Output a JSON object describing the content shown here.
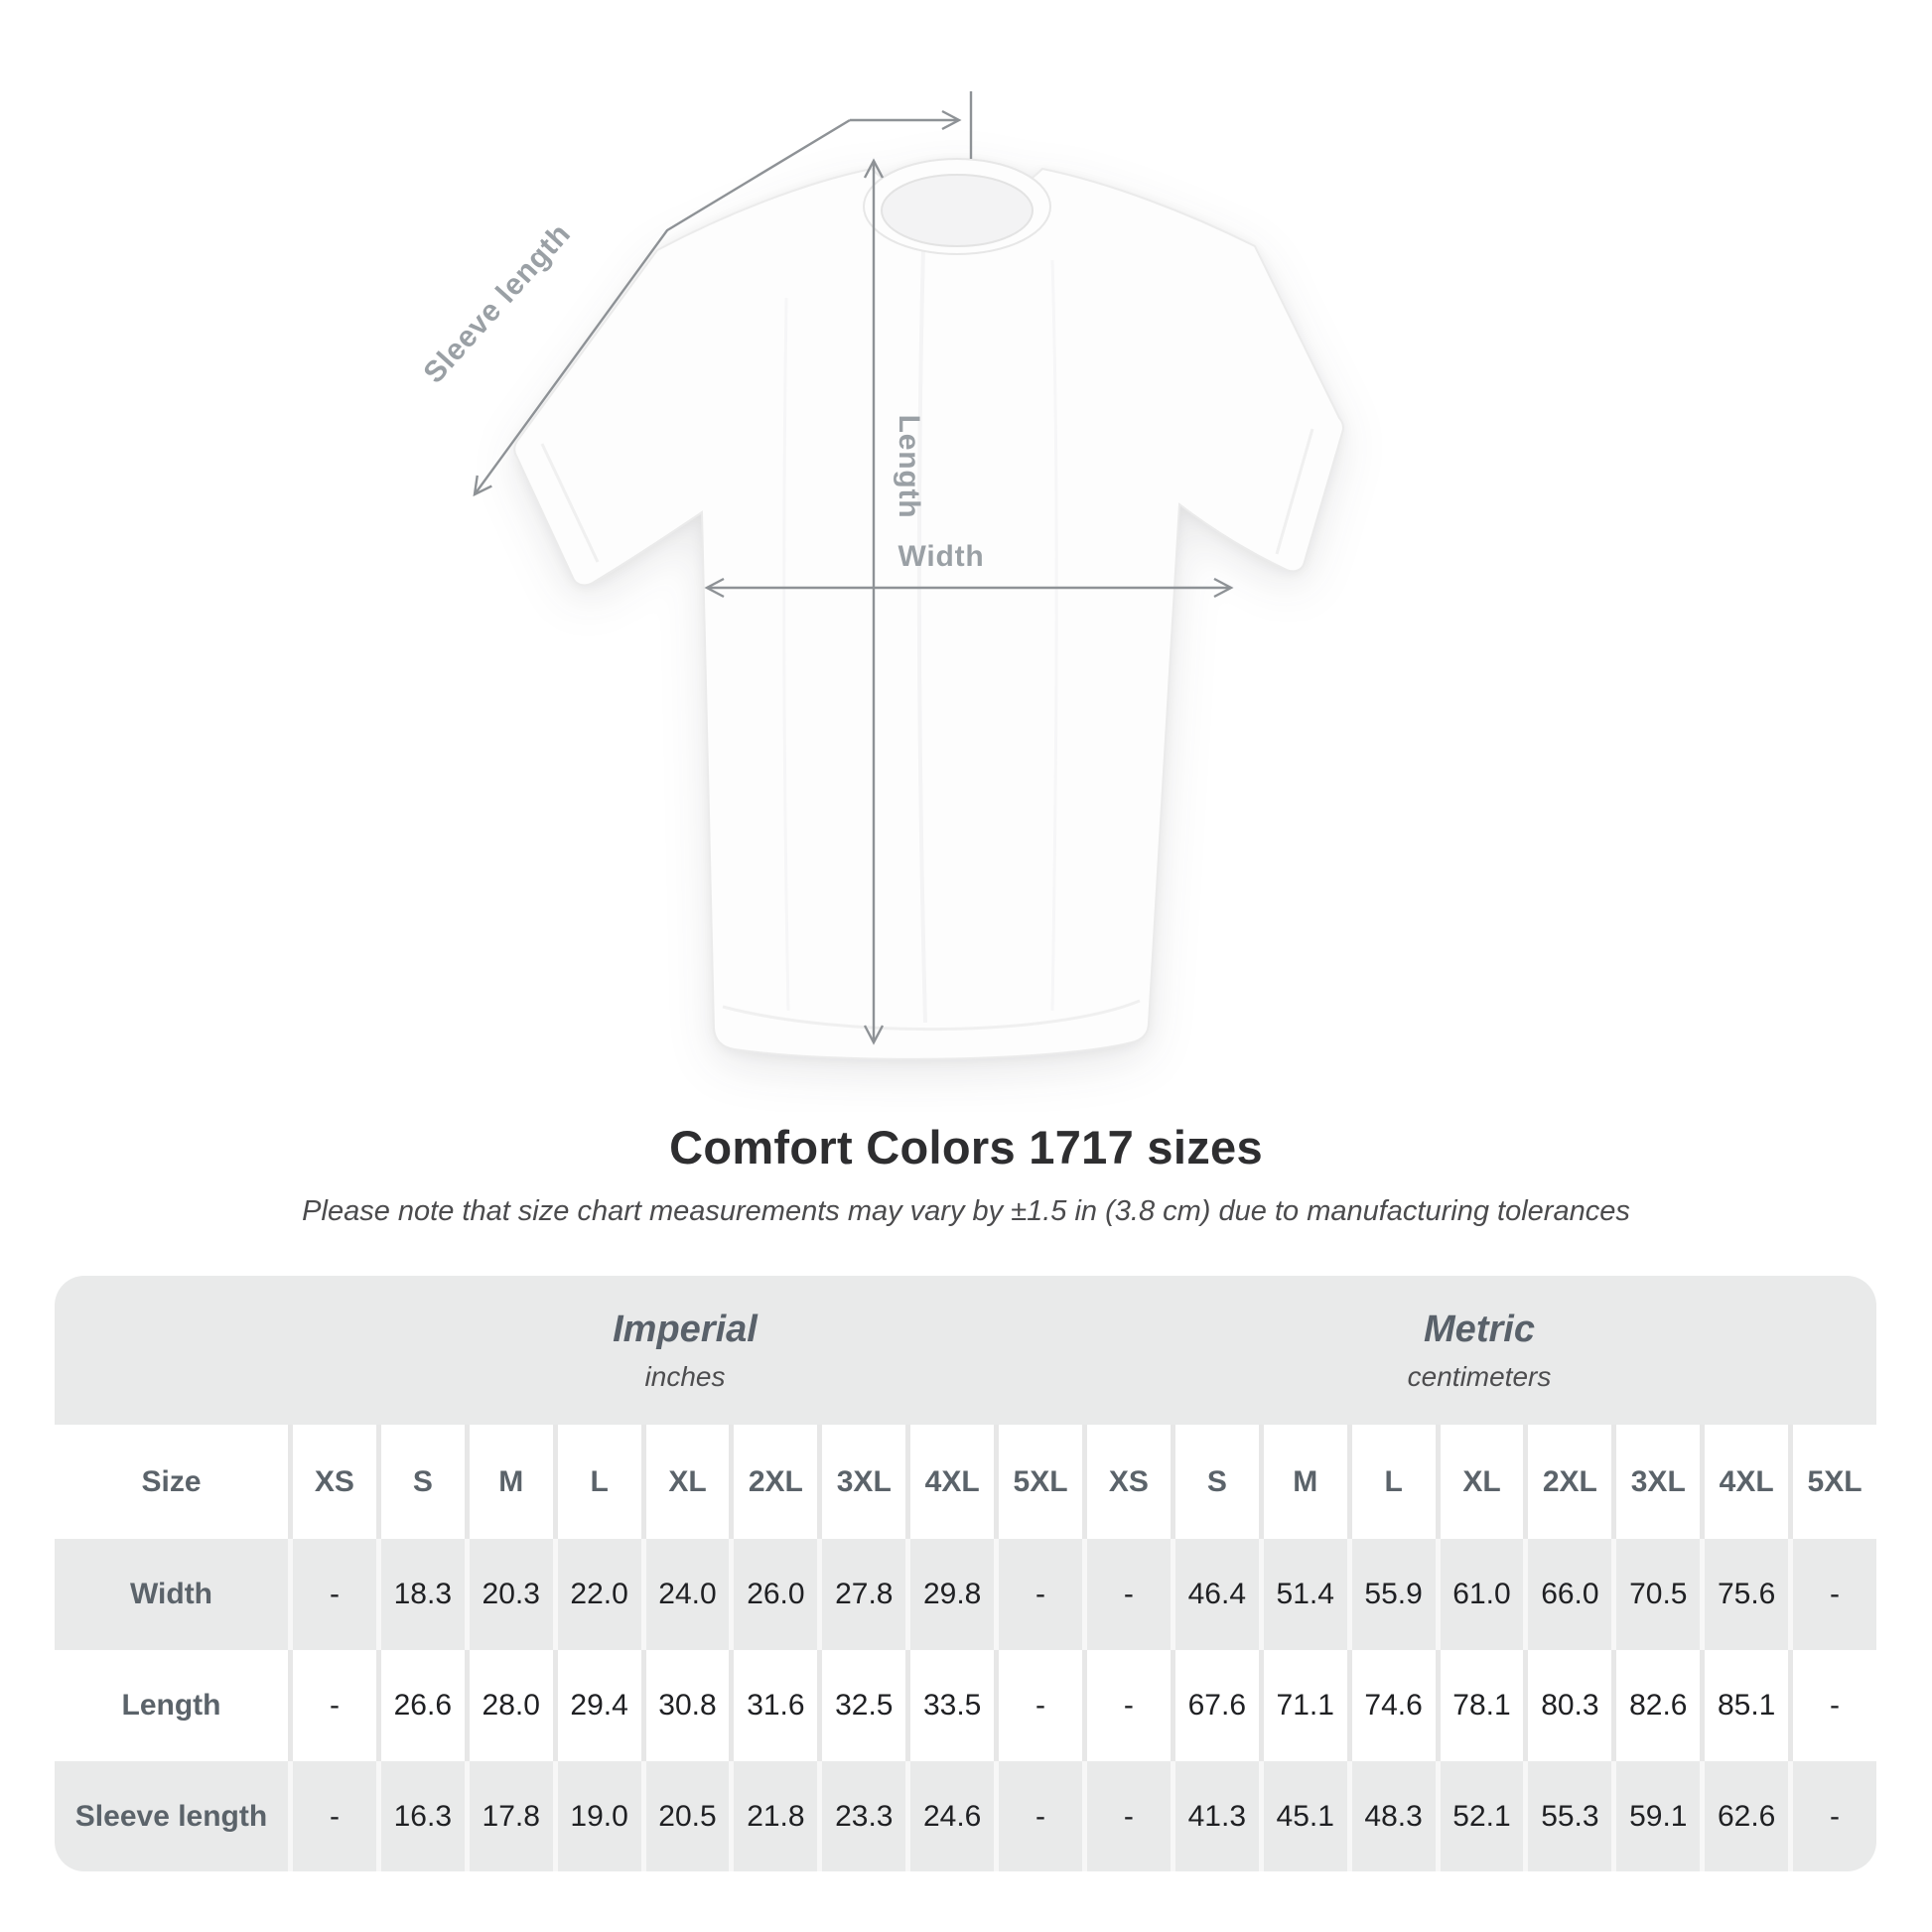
{
  "diagram": {
    "labels": {
      "sleeve_length": "Sleeve length",
      "length": "Length",
      "width": "Width"
    }
  },
  "header": {
    "title": "Comfort Colors 1717 sizes",
    "subtitle": "Please note that size chart measurements may vary by ±1.5 in (3.8 cm) due to manufacturing tolerances"
  },
  "table": {
    "size_header": "Size",
    "unit_groups": [
      {
        "label": "Imperial",
        "sublabel": "inches"
      },
      {
        "label": "Metric",
        "sublabel": "centimeters"
      }
    ],
    "sizes": [
      "XS",
      "S",
      "M",
      "L",
      "XL",
      "2XL",
      "3XL",
      "4XL",
      "5XL"
    ],
    "rows": [
      {
        "label": "Width",
        "imperial": [
          "-",
          "18.3",
          "20.3",
          "22.0",
          "24.0",
          "26.0",
          "27.8",
          "29.8",
          "-"
        ],
        "metric": [
          "-",
          "46.4",
          "51.4",
          "55.9",
          "61.0",
          "66.0",
          "70.5",
          "75.6",
          "-"
        ]
      },
      {
        "label": "Length",
        "imperial": [
          "-",
          "26.6",
          "28.0",
          "29.4",
          "30.8",
          "31.6",
          "32.5",
          "33.5",
          "-"
        ],
        "metric": [
          "-",
          "67.6",
          "71.1",
          "74.6",
          "78.1",
          "80.3",
          "82.6",
          "85.1",
          "-"
        ]
      },
      {
        "label": "Sleeve length",
        "imperial": [
          "-",
          "16.3",
          "17.8",
          "19.0",
          "20.5",
          "21.8",
          "23.3",
          "24.6",
          "-"
        ],
        "metric": [
          "-",
          "41.3",
          "45.1",
          "48.3",
          "52.1",
          "55.3",
          "59.1",
          "62.6",
          "-"
        ]
      }
    ]
  },
  "chart_data": {
    "type": "table",
    "title": "Comfort Colors 1717 sizes",
    "note": "Measurements may vary by ±1.5 in (3.8 cm) due to manufacturing tolerances",
    "columns": [
      "XS",
      "S",
      "M",
      "L",
      "XL",
      "2XL",
      "3XL",
      "4XL",
      "5XL"
    ],
    "unit_groups": [
      "inches",
      "centimeters"
    ],
    "rows": [
      {
        "label": "Width",
        "inches": [
          null,
          18.3,
          20.3,
          22.0,
          24.0,
          26.0,
          27.8,
          29.8,
          null
        ],
        "centimeters": [
          null,
          46.4,
          51.4,
          55.9,
          61.0,
          66.0,
          70.5,
          75.6,
          null
        ]
      },
      {
        "label": "Length",
        "inches": [
          null,
          26.6,
          28.0,
          29.4,
          30.8,
          31.6,
          32.5,
          33.5,
          null
        ],
        "centimeters": [
          null,
          67.6,
          71.1,
          74.6,
          78.1,
          80.3,
          82.6,
          85.1,
          null
        ]
      },
      {
        "label": "Sleeve length",
        "inches": [
          null,
          16.3,
          17.8,
          19.0,
          20.5,
          21.8,
          23.3,
          24.6,
          null
        ],
        "centimeters": [
          null,
          41.3,
          45.1,
          48.3,
          52.1,
          55.3,
          59.1,
          62.6,
          null
        ]
      }
    ],
    "colors": {
      "stripe_gray": "#e9eaea",
      "header_text": "#5b636a",
      "value_text": "#1f2023",
      "annotation_gray": "#9aa0a5"
    }
  }
}
